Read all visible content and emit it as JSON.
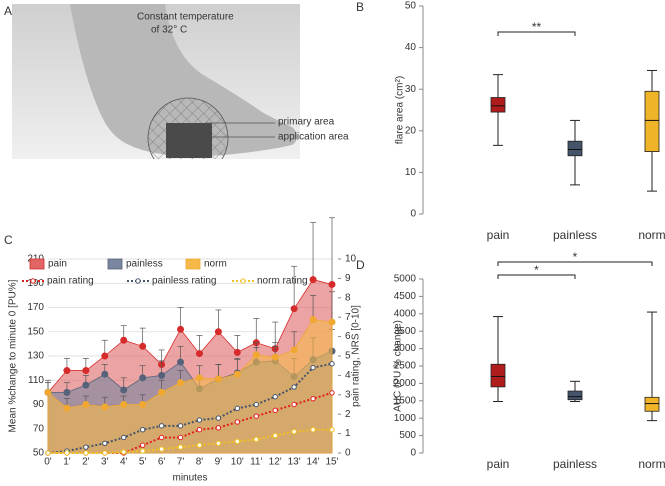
{
  "panel_a": {
    "label": "A",
    "title": [
      "Constant temperature",
      "of 32° C"
    ],
    "labels": [
      "primary area",
      "application area"
    ]
  },
  "chart_data": [
    {
      "type": "box",
      "panel": "B",
      "ylabel": "flare area (cm²)",
      "categories": [
        "pain",
        "painless",
        "norm"
      ],
      "colors": [
        "#b01c1c",
        "#44546a",
        "#f0b429"
      ],
      "boxes": [
        {
          "min": 16.5,
          "q1": 24.5,
          "median": 26,
          "q3": 28,
          "max": 33.5
        },
        {
          "min": 7,
          "q1": 14,
          "median": 15.5,
          "q3": 17.5,
          "max": 22.5
        },
        {
          "min": 5.5,
          "q1": 15,
          "median": 22.5,
          "q3": 29.5,
          "max": 34.5
        }
      ],
      "ylim": [
        0,
        50
      ],
      "yticks": [
        0,
        10,
        20,
        30,
        40,
        50
      ],
      "significance": [
        {
          "groups": [
            "pain",
            "painless"
          ],
          "label": "**"
        }
      ]
    },
    {
      "type": "combo",
      "panel": "C",
      "xlabel": "minutes",
      "ylabel": "Mean %change to minute 0 [PU%]",
      "y2label": "pain rating, NRS [0-10]",
      "categories": [
        "0'",
        "1'",
        "2'",
        "3'",
        "4'",
        "5'",
        "6'",
        "7'",
        "8'",
        "9'",
        "10'",
        "11'",
        "12'",
        "13'",
        "14'",
        "15'"
      ],
      "ylim": [
        50,
        210
      ],
      "yticks": [
        50,
        70,
        90,
        110,
        130,
        150,
        170,
        190,
        210
      ],
      "y2lim": [
        0,
        10
      ],
      "y2ticks": [
        0,
        1,
        2,
        3,
        4,
        5,
        6,
        7,
        8,
        9,
        10
      ],
      "grid": true,
      "series": [
        {
          "name": "pain",
          "style": "area",
          "color": "#d62b2b",
          "fill": "#e06666",
          "values": [
            100,
            118,
            118,
            130,
            143,
            138,
            123,
            152,
            132,
            150,
            133,
            141,
            136,
            169,
            193,
            189
          ],
          "errors": [
            10,
            10,
            10,
            13,
            12,
            15,
            12,
            18,
            15,
            18,
            14,
            20,
            22,
            35,
            47,
            55
          ]
        },
        {
          "name": "painless",
          "style": "area",
          "color": "#55627a",
          "fill": "#7886a0",
          "values": [
            100,
            100,
            106,
            115,
            102,
            112,
            114,
            125,
            103,
            111,
            116,
            125,
            126,
            113,
            127,
            134
          ],
          "errors": [
            8,
            8,
            8,
            8,
            10,
            10,
            12,
            13,
            10,
            12,
            12,
            12,
            12,
            15,
            18,
            18
          ]
        },
        {
          "name": "norm",
          "style": "area",
          "color": "#f0a830",
          "fill": "#f5b94a",
          "values": [
            100,
            87,
            90,
            88,
            90,
            90,
            100,
            108,
            112,
            111,
            115,
            131,
            129,
            135,
            160,
            158
          ],
          "errors": [
            8,
            8,
            7,
            8,
            7,
            8,
            10,
            10,
            10,
            12,
            12,
            10,
            12,
            15,
            20,
            25
          ]
        },
        {
          "name": "pain rating",
          "style": "dotted",
          "axis": "y2",
          "color": "#e02020",
          "values": [
            0,
            0,
            0,
            0,
            0,
            0.4,
            0.8,
            0.8,
            1.2,
            1.3,
            1.6,
            1.9,
            2.2,
            2.5,
            2.8,
            3.1
          ]
        },
        {
          "name": "painless rating",
          "style": "dotted",
          "axis": "y2",
          "color": "#44546a",
          "values": [
            0,
            0.1,
            0.3,
            0.5,
            0.8,
            1.2,
            1.4,
            1.4,
            1.7,
            1.8,
            2.3,
            2.5,
            2.9,
            3.4,
            4.4,
            4.6
          ]
        },
        {
          "name": "norm rating",
          "style": "dotted",
          "axis": "y2",
          "color": "#f0c020",
          "values": [
            0,
            0,
            0,
            0,
            0.05,
            0.1,
            0.2,
            0.3,
            0.4,
            0.5,
            0.6,
            0.7,
            0.9,
            1.1,
            1.2,
            1.2
          ]
        }
      ]
    },
    {
      "type": "box",
      "panel": "D",
      "ylabel": "AUC (PU % change)",
      "categories": [
        "pain",
        "painless",
        "norm"
      ],
      "colors": [
        "#b01c1c",
        "#44546a",
        "#f0b429"
      ],
      "boxes": [
        {
          "min": 1480,
          "q1": 1900,
          "median": 2200,
          "q3": 2550,
          "max": 3920
        },
        {
          "min": 1480,
          "q1": 1530,
          "median": 1620,
          "q3": 1780,
          "max": 2060
        },
        {
          "min": 930,
          "q1": 1200,
          "median": 1420,
          "q3": 1600,
          "max": 4050
        }
      ],
      "ylim": [
        0,
        5000
      ],
      "yticks": [
        0,
        500,
        1000,
        1500,
        2000,
        2500,
        3000,
        3500,
        4000,
        4500,
        5000
      ],
      "significance": [
        {
          "groups": [
            "pain",
            "painless"
          ],
          "label": "*"
        },
        {
          "groups": [
            "pain",
            "norm"
          ],
          "label": "*"
        }
      ]
    }
  ]
}
